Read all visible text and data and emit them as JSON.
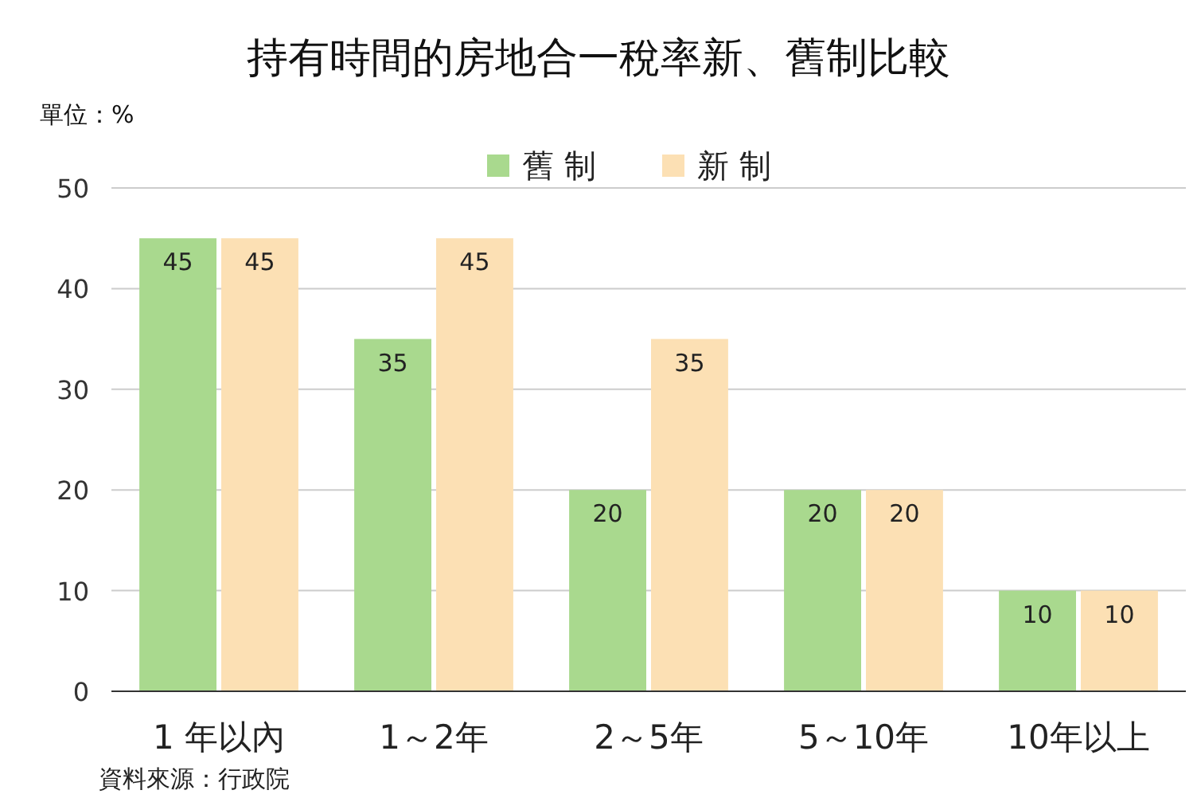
{
  "chart_data": {
    "type": "bar",
    "title": "持有時間的房地合一稅率新、舊制比較",
    "ylabel": "單位：%",
    "categories": [
      "1 年以內",
      "1～2年",
      "2～5年",
      "5～10年",
      "10年以上"
    ],
    "series": [
      {
        "name": "舊 制",
        "color": "#a9d98e",
        "values": [
          45,
          35,
          20,
          20,
          10
        ]
      },
      {
        "name": "新 制",
        "color": "#fce0b4",
        "values": [
          45,
          45,
          35,
          20,
          10
        ]
      }
    ],
    "ylim": [
      0,
      50
    ],
    "yticks": [
      0,
      10,
      20,
      30,
      40,
      50
    ],
    "grid": "y",
    "legend": "top",
    "data_labels": true,
    "annotations": [
      "資料來源：行政院"
    ]
  }
}
